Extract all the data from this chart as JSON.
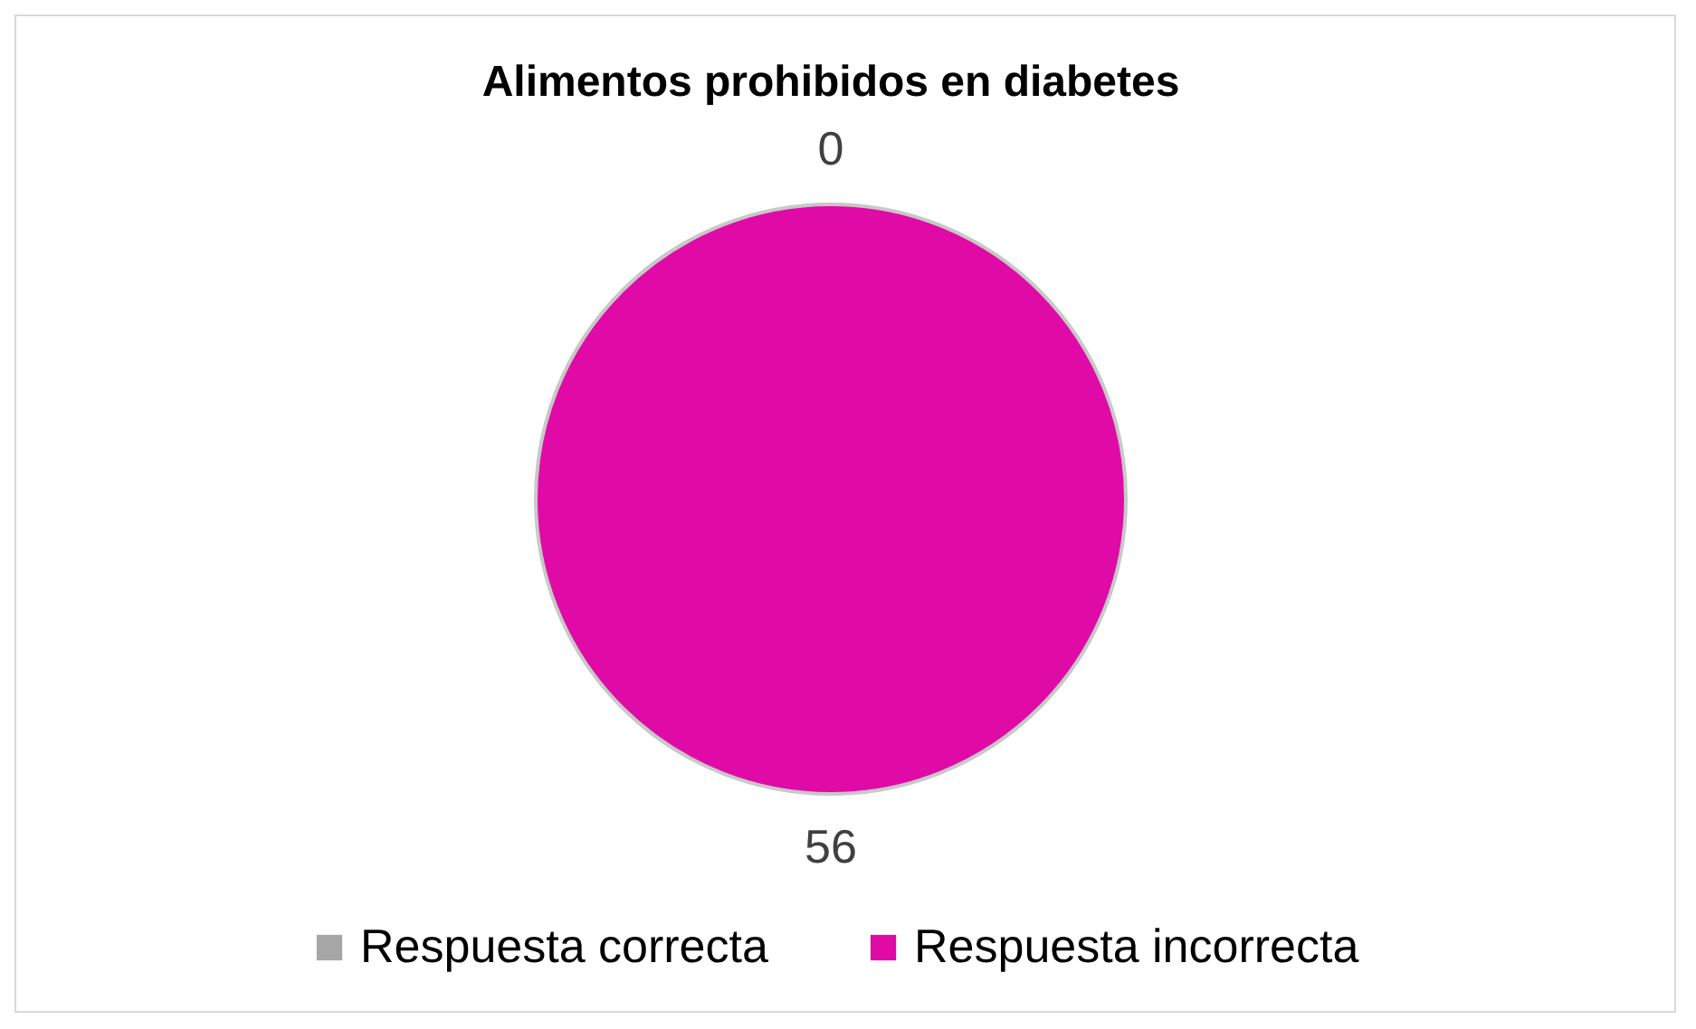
{
  "chart_data": {
    "type": "pie",
    "title": "Alimentos prohibidos en diabetes",
    "categories": [
      "Respuesta correcta",
      "Respuesta incorrecta"
    ],
    "values": [
      0,
      56
    ],
    "colors": [
      "#a6a6a6",
      "#e00aa6"
    ],
    "value_labels": [
      "0",
      "56"
    ],
    "legend": "bottom"
  }
}
